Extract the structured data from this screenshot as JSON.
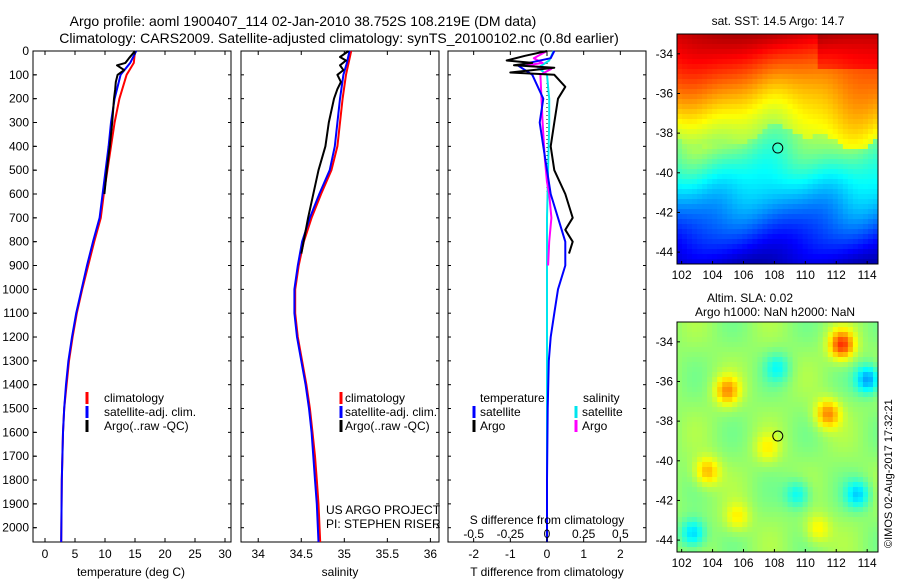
{
  "header": {
    "title_line1": "Argo profile: aoml 1900407_114 02-Jan-2010 38.752S 108.219E (DM data)",
    "title_line2": "Climatology: CARS2009. Satellite-adjusted climatology: synTS_20100102.nc (0.8d earlier)"
  },
  "colors": {
    "climatology": "#ff0000",
    "satellite": "#0000ff",
    "argo": "#000000",
    "salinity_satellite": "#00e5ee",
    "salinity_argo": "#ff00ff"
  },
  "depth_axis": {
    "ylim": [
      0,
      2060
    ],
    "ticks": [
      0,
      100,
      200,
      300,
      400,
      500,
      600,
      700,
      800,
      900,
      1000,
      1100,
      1200,
      1300,
      1400,
      1500,
      1600,
      1700,
      1800,
      1900,
      2000
    ]
  },
  "chart_data": [
    {
      "type": "line",
      "xlabel": "temperature (deg C)",
      "xlim": [
        -2,
        31
      ],
      "xticks": [
        0,
        5,
        10,
        15,
        20,
        25,
        30
      ],
      "legend": [
        "climatology",
        "satellite-adj. clim.",
        "Argo(..raw -QC)"
      ],
      "series": [
        {
          "name": "climatology",
          "x": [
            15.0,
            14.8,
            13.6,
            12.4,
            11.6,
            11.0,
            10.4,
            9.8,
            9.3,
            8.2,
            7.2,
            6.2,
            5.3,
            4.6,
            4.0,
            3.6,
            3.2,
            3.0,
            2.9,
            2.8,
            2.7
          ],
          "y": [
            0,
            50,
            100,
            200,
            300,
            400,
            500,
            600,
            700,
            800,
            900,
            1000,
            1100,
            1200,
            1300,
            1400,
            1500,
            1600,
            1700,
            1800,
            2060
          ]
        },
        {
          "name": "satellite-adj. clim.",
          "x": [
            15.2,
            14.2,
            12.6,
            11.6,
            11.0,
            10.6,
            10.1,
            9.6,
            9.1,
            8.0,
            7.0,
            6.1,
            5.2,
            4.5,
            3.9,
            3.5,
            3.2,
            3.0,
            2.9,
            2.8,
            2.7
          ],
          "y": [
            0,
            50,
            100,
            200,
            300,
            400,
            500,
            600,
            700,
            800,
            900,
            1000,
            1100,
            1200,
            1300,
            1400,
            1500,
            1600,
            1700,
            1800,
            2060
          ]
        },
        {
          "name": "Argo(..raw -QC)",
          "x": [
            15.0,
            14.0,
            13.4,
            12.0,
            13.2,
            12.1,
            11.8,
            11.7,
            11.5,
            11.2,
            10.8,
            10.3,
            9.9
          ],
          "y": [
            0,
            30,
            50,
            60,
            80,
            100,
            130,
            160,
            200,
            300,
            400,
            500,
            600
          ]
        }
      ]
    },
    {
      "type": "line",
      "xlabel": "salinity",
      "xlim": [
        33.8,
        36.1
      ],
      "xticks": [
        34,
        34.5,
        35,
        35.5,
        36
      ],
      "legend": [
        "climatology",
        "satellite-adj. clim.",
        "Argo(..raw -QC)"
      ],
      "annotations": [
        "US ARGO PROJECT",
        "PI: STEPHEN RISER"
      ],
      "series": [
        {
          "name": "climatology",
          "x": [
            35.08,
            35.05,
            35.02,
            34.98,
            34.95,
            34.92,
            34.85,
            34.73,
            34.62,
            34.53,
            34.47,
            34.43,
            34.43,
            34.46,
            34.51,
            34.56,
            34.6,
            34.63,
            34.66,
            34.68,
            34.7,
            34.72
          ],
          "y": [
            0,
            50,
            100,
            200,
            300,
            400,
            500,
            600,
            700,
            800,
            900,
            1000,
            1100,
            1200,
            1300,
            1400,
            1500,
            1600,
            1700,
            1800,
            1900,
            2060
          ]
        },
        {
          "name": "satellite-adj. clim.",
          "x": [
            35.06,
            35.03,
            34.99,
            34.95,
            34.92,
            34.89,
            34.83,
            34.71,
            34.6,
            34.51,
            34.46,
            34.42,
            34.42,
            34.45,
            34.5,
            34.55,
            34.59,
            34.62,
            34.64,
            34.66,
            34.68,
            34.7
          ],
          "y": [
            0,
            50,
            100,
            200,
            300,
            400,
            500,
            600,
            700,
            800,
            900,
            1000,
            1100,
            1200,
            1300,
            1400,
            1500,
            1600,
            1700,
            1800,
            1900,
            2060
          ]
        },
        {
          "name": "Argo(..raw -QC)",
          "x": [
            35.05,
            34.95,
            35.02,
            34.95,
            34.99,
            34.92,
            34.96,
            34.92,
            34.88,
            34.82,
            34.78,
            34.7,
            34.58,
            34.5
          ],
          "y": [
            0,
            25,
            40,
            60,
            80,
            100,
            130,
            160,
            200,
            300,
            400,
            500,
            700,
            850
          ]
        }
      ]
    },
    {
      "type": "line",
      "xlabel": "T difference from climatology",
      "xlabel_top": "S difference from climatology",
      "xlim": [
        -2.7,
        2.7
      ],
      "xticks": [
        -2,
        -1,
        0,
        1,
        2
      ],
      "xticks_salinity": [
        -0.5,
        -0.25,
        0,
        0.25,
        0.5
      ],
      "legend_titles": [
        "temperature",
        "salinity"
      ],
      "legend": [
        "satellite",
        "Argo",
        "satellite",
        "Argo"
      ],
      "series": [
        {
          "name": "temperature satellite",
          "x": [
            0.2,
            0.1,
            -0.8,
            -0.4,
            -0.1,
            -0.2,
            -0.1,
            0,
            0.1,
            0.3,
            0.5,
            0.5,
            0.3,
            0.2,
            0.1,
            0.05,
            0.02,
            0,
            0
          ],
          "y": [
            0,
            30,
            60,
            100,
            200,
            300,
            400,
            500,
            600,
            700,
            800,
            900,
            1000,
            1100,
            1200,
            1300,
            1500,
            1800,
            2060
          ]
        },
        {
          "name": "temperature Argo",
          "x": [
            0,
            -0.6,
            -1.1,
            -0.4,
            -0.9,
            0.2,
            -1.0,
            0.2,
            0.5,
            0.3,
            0.2,
            0.1,
            0.2,
            0.5,
            0.7,
            0.5,
            0.7,
            0.6
          ],
          "y": [
            0,
            20,
            40,
            50,
            60,
            70,
            90,
            100,
            150,
            200,
            300,
            400,
            500,
            600,
            700,
            750,
            800,
            850
          ]
        },
        {
          "name": "salinity satellite",
          "x": [
            0.3,
            0.1,
            -0.4,
            0,
            0.1,
            0.1,
            0.05,
            0,
            0,
            0,
            0,
            0,
            0
          ],
          "y": [
            0,
            40,
            70,
            100,
            200,
            300,
            500,
            700,
            900,
            1100,
            1400,
            1800,
            2060
          ]
        },
        {
          "name": "salinity Argo",
          "x": [
            0,
            -0.6,
            -0.2,
            -0.9,
            0.2,
            -0.3,
            -0.2,
            -0.1,
            0,
            0.1,
            0.2,
            0.1,
            0.05
          ],
          "y": [
            0,
            30,
            50,
            60,
            75,
            100,
            300,
            450,
            550,
            600,
            700,
            800,
            900
          ]
        }
      ]
    },
    {
      "type": "heatmap",
      "title": "sat. SST: 14.5 Argo: 14.7",
      "xlim": [
        101.7,
        114.7
      ],
      "ylim": [
        -44.6,
        -33
      ],
      "xticks": [
        102,
        104,
        106,
        108,
        110,
        112,
        114
      ],
      "yticks": [
        -34,
        -36,
        -38,
        -40,
        -42,
        -44
      ],
      "marker": {
        "lon": 108.219,
        "lat": -38.752
      }
    },
    {
      "type": "heatmap",
      "title_line1": "Altim. SLA: 0.02",
      "title_line2": "Argo h1000: NaN h2000: NaN",
      "xlim": [
        101.7,
        114.7
      ],
      "ylim": [
        -44.6,
        -33
      ],
      "xticks": [
        102,
        104,
        106,
        108,
        110,
        112,
        114
      ],
      "yticks": [
        -34,
        -36,
        -38,
        -40,
        -42,
        -44
      ],
      "marker": {
        "lon": 108.219,
        "lat": -38.752
      }
    }
  ],
  "watermark": "©IMOS 02-Aug-2017 17:32:21"
}
